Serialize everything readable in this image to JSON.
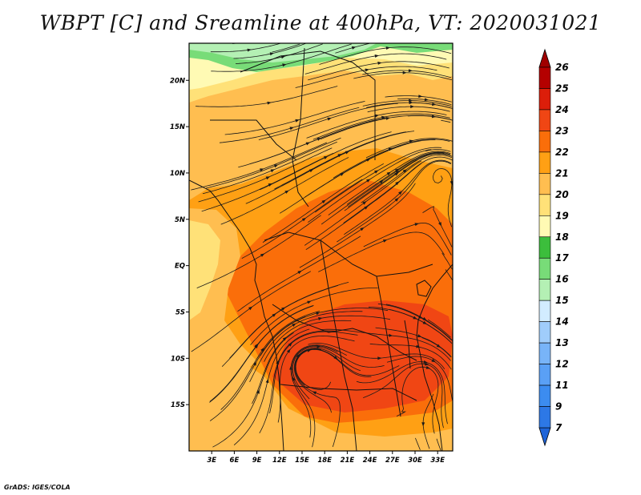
{
  "title": "WBPT [C] and Sreamline at 400hPa, VT: 2020031021",
  "credit": "GrADS: IGES/COLA",
  "map": {
    "variable": "Wet-bulb potential temperature",
    "units": "C",
    "level": "400hPa",
    "valid_time": "2020031021",
    "lon_range": [
      0,
      35
    ],
    "lat_range": [
      -20,
      24
    ],
    "lon_ticks": [
      {
        "value": 3,
        "label": "3E"
      },
      {
        "value": 6,
        "label": "6E"
      },
      {
        "value": 9,
        "label": "9E"
      },
      {
        "value": 12,
        "label": "12E"
      },
      {
        "value": 15,
        "label": "15E"
      },
      {
        "value": 18,
        "label": "18E"
      },
      {
        "value": 21,
        "label": "21E"
      },
      {
        "value": 24,
        "label": "24E"
      },
      {
        "value": 27,
        "label": "27E"
      },
      {
        "value": 30,
        "label": "30E"
      },
      {
        "value": 33,
        "label": "33E"
      }
    ],
    "lat_ticks": [
      {
        "value": 20,
        "label": "20N"
      },
      {
        "value": 15,
        "label": "15N"
      },
      {
        "value": 10,
        "label": "10N"
      },
      {
        "value": 5,
        "label": "5N"
      },
      {
        "value": 0,
        "label": "EQ"
      },
      {
        "value": -5,
        "label": "5S"
      },
      {
        "value": -10,
        "label": "10S"
      },
      {
        "value": -15,
        "label": "15S"
      }
    ]
  },
  "colorbar": {
    "levels": [
      {
        "label": "7",
        "color": "#1e64d8"
      },
      {
        "label": "9",
        "color": "#2d78e6"
      },
      {
        "label": "11",
        "color": "#3c8cf0"
      },
      {
        "label": "12",
        "color": "#5aa0f5"
      },
      {
        "label": "13",
        "color": "#78b4f8"
      },
      {
        "label": "14",
        "color": "#a0cdfb"
      },
      {
        "label": "15",
        "color": "#d2ecff"
      },
      {
        "label": "16",
        "color": "#b4f0b4"
      },
      {
        "label": "17",
        "color": "#78dc78"
      },
      {
        "label": "18",
        "color": "#3cbe3c"
      },
      {
        "label": "19",
        "color": "#fffab4"
      },
      {
        "label": "20",
        "color": "#ffe178"
      },
      {
        "label": "21",
        "color": "#ffbe50"
      },
      {
        "label": "22",
        "color": "#ffa014"
      },
      {
        "label": "23",
        "color": "#fa6e0a"
      },
      {
        "label": "24",
        "color": "#f04614"
      },
      {
        "label": "25",
        "color": "#dc1e0a"
      },
      {
        "label": "26",
        "color": "#b40000"
      }
    ],
    "under_color": "#1e64d8",
    "over_color": "#a00000"
  }
}
